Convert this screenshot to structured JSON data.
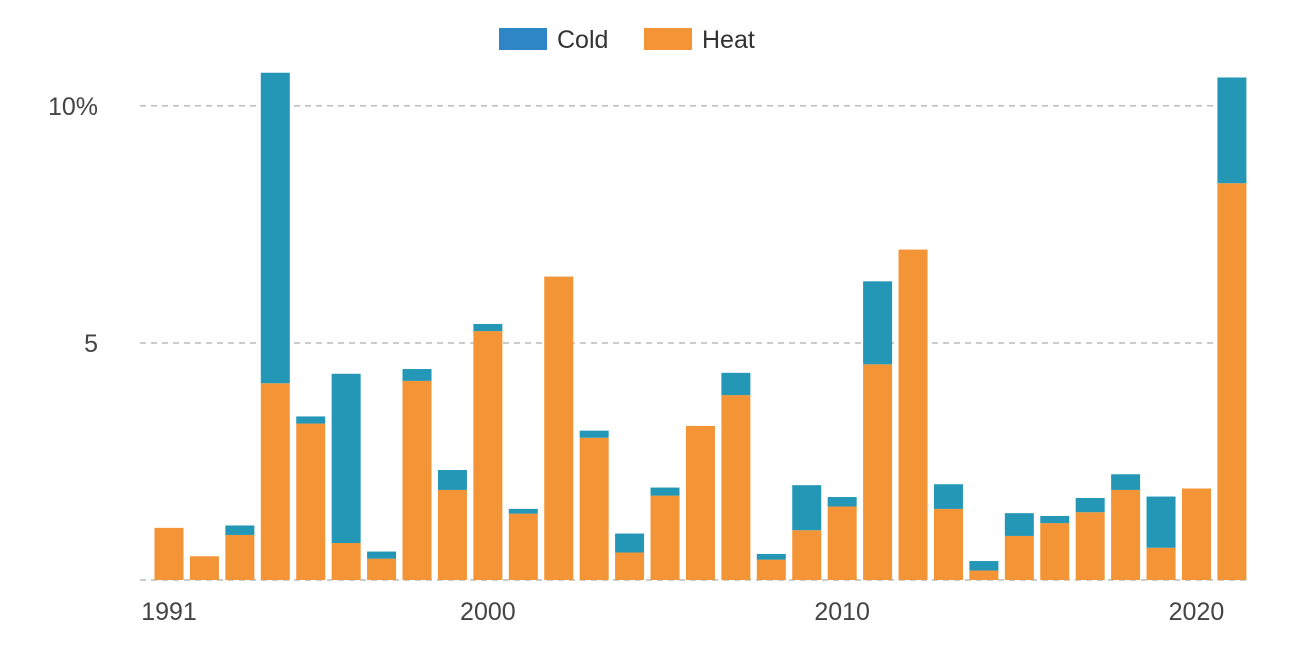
{
  "chart_data": {
    "type": "bar",
    "stacked": true,
    "title": "",
    "xlabel": "",
    "ylabel": "",
    "x": [
      1991,
      1992,
      1993,
      1994,
      1995,
      1996,
      1997,
      1998,
      1999,
      2000,
      2001,
      2002,
      2003,
      2004,
      2005,
      2006,
      2007,
      2008,
      2009,
      2010,
      2011,
      2012,
      2013,
      2014,
      2015,
      2016,
      2017,
      2018,
      2019,
      2020,
      2021
    ],
    "series": [
      {
        "name": "Heat",
        "color": "#f39536",
        "values": [
          1.1,
          0.5,
          0.95,
          4.15,
          3.3,
          0.78,
          0.45,
          4.2,
          1.9,
          5.25,
          1.4,
          6.4,
          3.0,
          0.58,
          1.78,
          3.25,
          3.9,
          0.43,
          1.05,
          1.55,
          4.55,
          6.97,
          1.5,
          0.2,
          0.93,
          1.2,
          1.43,
          1.9,
          0.68,
          1.93,
          8.37
        ]
      },
      {
        "name": "Cold",
        "color": "#2497b7",
        "values": [
          0.0,
          0.0,
          0.2,
          6.55,
          0.15,
          3.57,
          0.15,
          0.25,
          0.42,
          0.15,
          0.1,
          0.0,
          0.15,
          0.4,
          0.17,
          0.0,
          0.47,
          0.12,
          0.95,
          0.2,
          1.75,
          0.0,
          0.52,
          0.2,
          0.48,
          0.15,
          0.3,
          0.33,
          1.08,
          0.0,
          2.23
        ]
      }
    ],
    "legend": {
      "position": "top-center",
      "entries": [
        {
          "label": "Cold",
          "color": "#2f86c6"
        },
        {
          "label": "Heat",
          "color": "#f39536"
        }
      ]
    },
    "ylim": [
      0,
      10.8
    ],
    "yticks": [
      {
        "value": 0,
        "label": ""
      },
      {
        "value": 5,
        "label": "5"
      },
      {
        "value": 10,
        "label": "10%"
      }
    ],
    "xticks": [
      {
        "value": 1991,
        "label": "1991"
      },
      {
        "value": 2000,
        "label": "2000"
      },
      {
        "value": 2010,
        "label": "2010"
      },
      {
        "value": 2020,
        "label": "2020"
      }
    ],
    "grid": "horizontal-dashed"
  }
}
